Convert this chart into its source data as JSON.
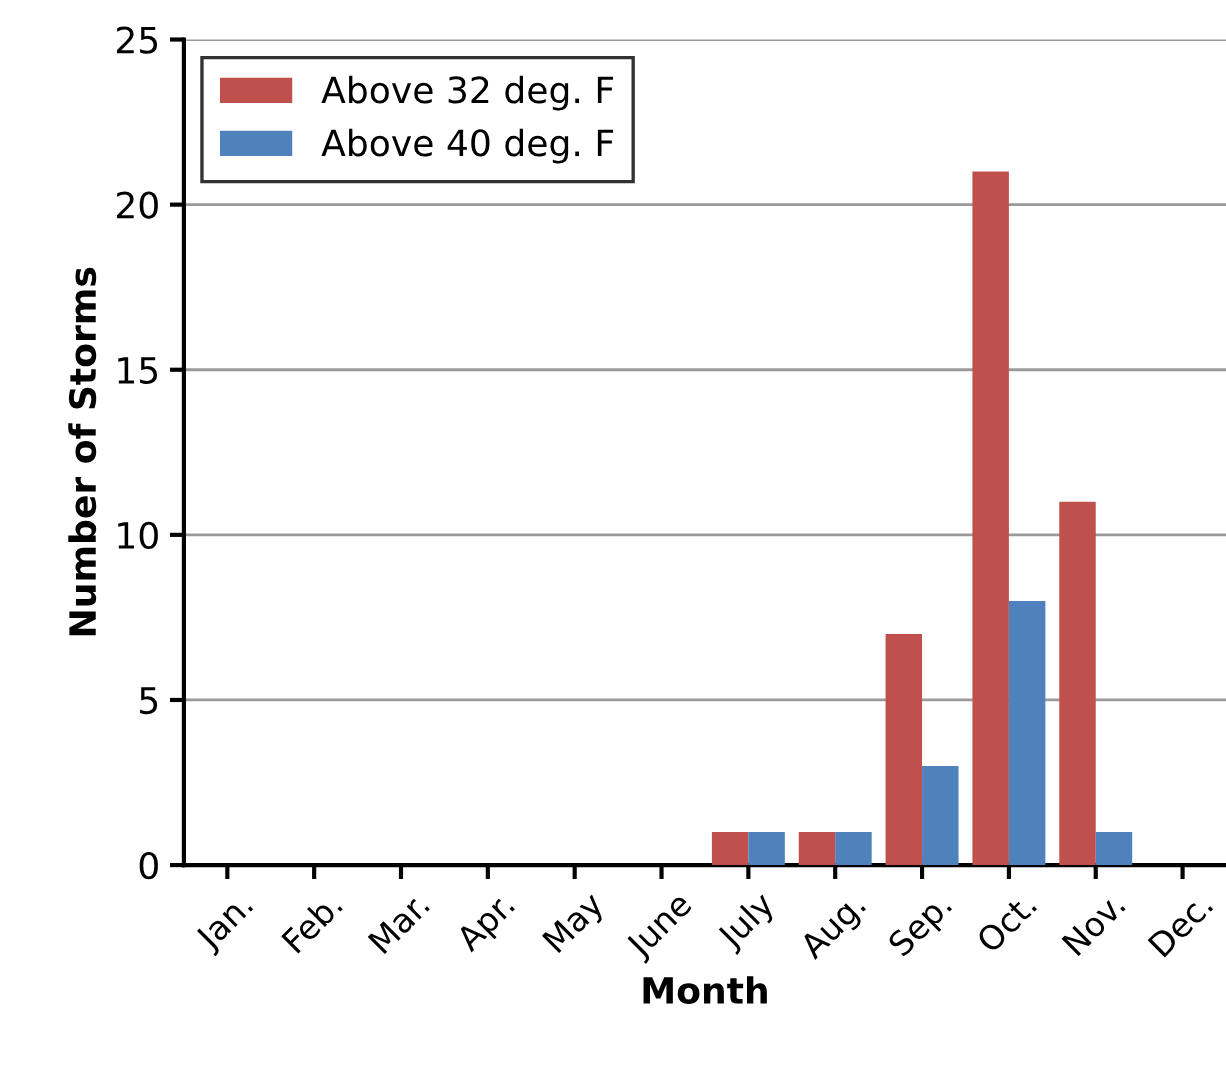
{
  "chart_data": {
    "type": "bar",
    "xlabel": "Month",
    "ylabel": "Number of Storms",
    "categories": [
      "Jan.",
      "Feb.",
      "Mar.",
      "Apr.",
      "May",
      "June",
      "July",
      "Aug.",
      "Sep.",
      "Oct.",
      "Nov.",
      "Dec."
    ],
    "series": [
      {
        "name": "Above 32 deg. F",
        "color": "#c0504d",
        "values": [
          0,
          0,
          0,
          0,
          0,
          0,
          1,
          1,
          7,
          21,
          11,
          0
        ]
      },
      {
        "name": "Above 40 deg. F",
        "color": "#4f81bd",
        "values": [
          0,
          0,
          0,
          0,
          0,
          0,
          1,
          1,
          3,
          8,
          1,
          0
        ]
      }
    ],
    "ylim": [
      0,
      25
    ],
    "yticks": [
      0,
      5,
      10,
      15,
      20,
      25
    ],
    "grid": "y",
    "legend": "top left"
  }
}
